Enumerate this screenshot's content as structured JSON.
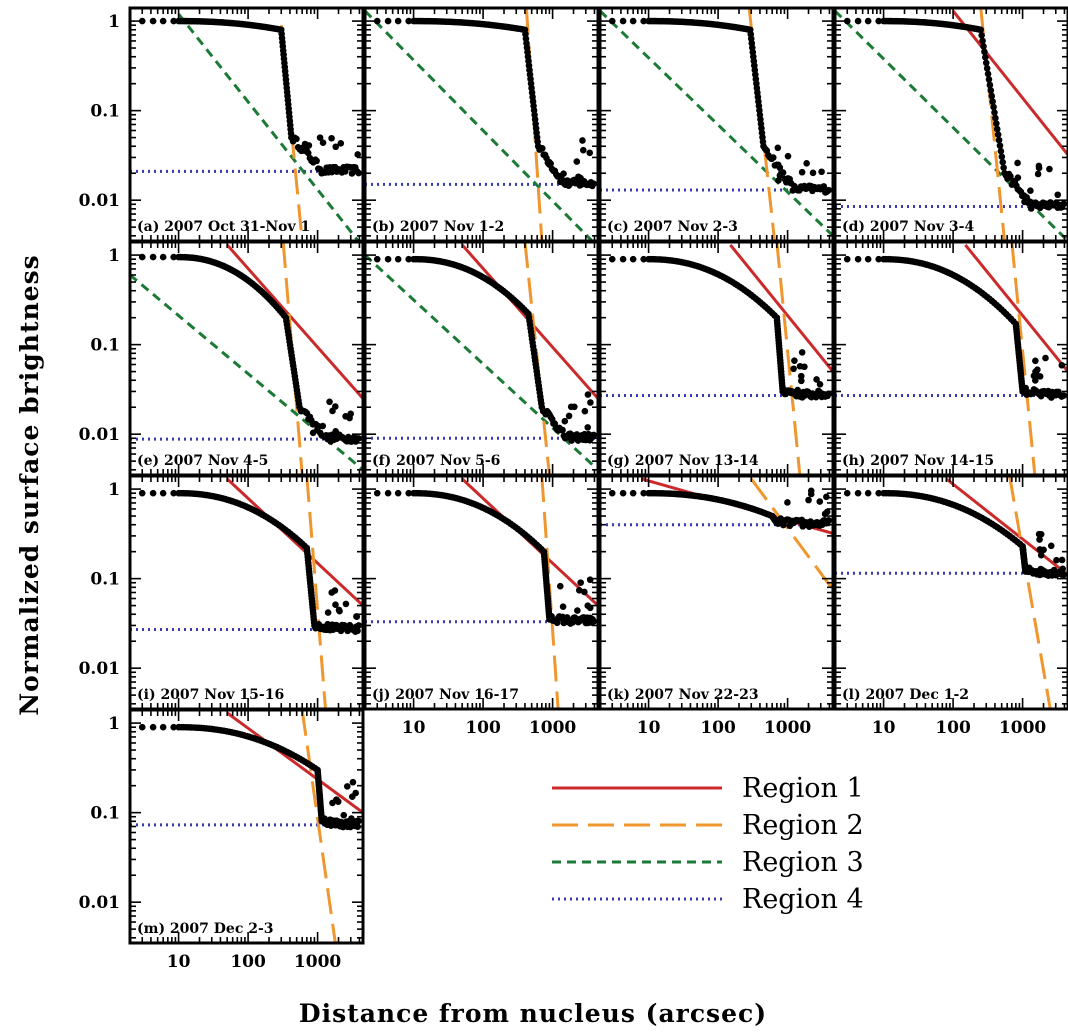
{
  "chart_data": {
    "type": "scatter",
    "xlabel": "Distance from nucleus (arcsec)",
    "ylabel": "Normalized surface brightness",
    "x_scale": "log",
    "y_scale": "log",
    "xlim": [
      2,
      4500
    ],
    "ylim": [
      0.0035,
      1.4
    ],
    "x_ticks": [
      {
        "value": 10,
        "label": "10"
      },
      {
        "value": 100,
        "label": "100"
      },
      {
        "value": 1000,
        "label": "1000"
      }
    ],
    "y_ticks": [
      {
        "value": 1,
        "label": "1"
      },
      {
        "value": 0.1,
        "label": "0.1"
      },
      {
        "value": 0.01,
        "label": "0.01"
      }
    ],
    "grid": false,
    "legend_position": "bottom-right",
    "legend": [
      {
        "key": "r1",
        "label": "Region 1",
        "color": "#cc2a2a",
        "dash": "solid"
      },
      {
        "key": "r2",
        "label": "Region 2",
        "color": "#f0962e",
        "dash": "long-dash"
      },
      {
        "key": "r3",
        "label": "Region 3",
        "color": "#1b7a35",
        "dash": "dash"
      },
      {
        "key": "r4",
        "label": "Region 4",
        "color": "#3a3ab0",
        "dash": "dot"
      }
    ],
    "panels": [
      {
        "id": "a",
        "label": "(a) 2007 Oct 31-Nov 1",
        "bg": 0.021,
        "r1": null,
        "r3": [
          [
            10,
            1.2
          ],
          [
            4500,
            0.003
          ]
        ],
        "r2": [
          [
            300,
            0.9
          ],
          [
            600,
            0.0035
          ]
        ],
        "plateau": 1.0,
        "k1x": 300,
        "k1y": 0.8,
        "k2x": 420,
        "k2y": 0.05
      },
      {
        "id": "b",
        "label": "(b) 2007 Nov 1-2",
        "bg": 0.015,
        "r1": null,
        "r3": [
          [
            2,
            1.3
          ],
          [
            4500,
            0.003
          ]
        ],
        "r2": [
          [
            420,
            1.4
          ],
          [
            700,
            0.0035
          ]
        ],
        "plateau": 1.0,
        "k1x": 400,
        "k1y": 0.8,
        "k2x": 620,
        "k2y": 0.04
      },
      {
        "id": "c",
        "label": "(c) 2007 Nov 2-3",
        "bg": 0.013,
        "r1": null,
        "r3": [
          [
            2,
            1.3
          ],
          [
            4500,
            0.004
          ]
        ],
        "r2": [
          [
            280,
            1.4
          ],
          [
            650,
            0.0035
          ]
        ],
        "plateau": 1.0,
        "k1x": 290,
        "k1y": 0.8,
        "k2x": 450,
        "k2y": 0.04
      },
      {
        "id": "d",
        "label": "(d) 2007 Nov 3-4",
        "bg": 0.0085,
        "r1": [
          [
            100,
            1.3
          ],
          [
            4500,
            0.032
          ]
        ],
        "r3": [
          [
            2,
            1.3
          ],
          [
            4500,
            0.0035
          ]
        ],
        "r2": [
          [
            250,
            1.4
          ],
          [
            550,
            0.0035
          ]
        ],
        "plateau": 1.0,
        "k1x": 250,
        "k1y": 0.8,
        "k2x": 550,
        "k2y": 0.02
      },
      {
        "id": "e",
        "label": "(e) 2007 Nov 4-5",
        "bg": 0.0088,
        "r1": [
          [
            50,
            1.3
          ],
          [
            4500,
            0.025
          ]
        ],
        "r3": [
          [
            2,
            0.6
          ],
          [
            4500,
            0.004
          ]
        ],
        "r2": [
          [
            320,
            1.4
          ],
          [
            600,
            0.0035
          ]
        ],
        "plateau": 0.95,
        "k1x": 350,
        "k1y": 0.2,
        "k2x": 550,
        "k2y": 0.02
      },
      {
        "id": "f",
        "label": "(f) 2007 Nov 5-6",
        "bg": 0.009,
        "r1": [
          [
            50,
            1.3
          ],
          [
            4500,
            0.025
          ]
        ],
        "r3": [
          [
            2,
            1.0
          ],
          [
            4500,
            0.004
          ]
        ],
        "r2": [
          [
            400,
            1.4
          ],
          [
            900,
            0.0035
          ]
        ],
        "plateau": 0.9,
        "k1x": 450,
        "k1y": 0.22,
        "k2x": 700,
        "k2y": 0.02
      },
      {
        "id": "g",
        "label": "(g) 2007 Nov 13-14",
        "bg": 0.027,
        "r1": [
          [
            150,
            1.3
          ],
          [
            4500,
            0.05
          ]
        ],
        "r3": null,
        "r2": [
          [
            700,
            1.4
          ],
          [
            1500,
            0.0035
          ]
        ],
        "plateau": 0.9,
        "k1x": 700,
        "k1y": 0.2,
        "k2x": 850,
        "k2y": 0.03
      },
      {
        "id": "h",
        "label": "(h) 2007 Nov 14-15",
        "bg": 0.027,
        "r1": [
          [
            150,
            1.3
          ],
          [
            4500,
            0.05
          ]
        ],
        "r3": null,
        "r2": [
          [
            700,
            1.4
          ],
          [
            1500,
            0.0035
          ]
        ],
        "plateau": 0.9,
        "k1x": 800,
        "k1y": 0.17,
        "k2x": 1000,
        "k2y": 0.03
      },
      {
        "id": "i",
        "label": "(i) 2007 Nov 15-16",
        "bg": 0.027,
        "r1": [
          [
            50,
            1.3
          ],
          [
            4500,
            0.05
          ]
        ],
        "r3": null,
        "r2": [
          [
            700,
            1.4
          ],
          [
            1300,
            0.0035
          ]
        ],
        "plateau": 0.9,
        "k1x": 700,
        "k1y": 0.22,
        "k2x": 900,
        "k2y": 0.03
      },
      {
        "id": "j",
        "label": "(j) 2007 Nov 16-17",
        "bg": 0.033,
        "r1": [
          [
            50,
            1.3
          ],
          [
            4500,
            0.05
          ]
        ],
        "r3": null,
        "r2": [
          [
            700,
            1.4
          ],
          [
            1200,
            0.0035
          ]
        ],
        "plateau": 0.9,
        "k1x": 750,
        "k1y": 0.2,
        "k2x": 900,
        "k2y": 0.035
      },
      {
        "id": "k",
        "label": "(k) 2007 Nov 22-23",
        "bg": 0.4,
        "r1": [
          [
            8,
            1.3
          ],
          [
            4500,
            0.32
          ]
        ],
        "r3": null,
        "r2": [
          [
            300,
            1.3
          ],
          [
            4500,
            0.075
          ]
        ],
        "plateau": 0.9,
        "k1x": 600,
        "k1y": 0.5,
        "k2x": 700,
        "k2y": 0.42
      },
      {
        "id": "l",
        "label": "(l) 2007 Dec 1-2",
        "bg": 0.115,
        "r1": [
          [
            80,
            1.3
          ],
          [
            4500,
            0.11
          ]
        ],
        "r3": null,
        "r2": [
          [
            650,
            1.4
          ],
          [
            2500,
            0.0035
          ]
        ],
        "plateau": 0.9,
        "k1x": 1000,
        "k1y": 0.23,
        "k2x": 1100,
        "k2y": 0.12
      },
      {
        "id": "m",
        "label": "(m) 2007 Dec 2-3",
        "bg": 0.073,
        "r1": [
          [
            50,
            1.3
          ],
          [
            4500,
            0.1
          ]
        ],
        "r3": null,
        "r2": [
          [
            600,
            1.4
          ],
          [
            1800,
            0.0035
          ]
        ],
        "plateau": 0.9,
        "k1x": 1000,
        "k1y": 0.3,
        "k2x": 1150,
        "k2y": 0.08
      }
    ]
  }
}
